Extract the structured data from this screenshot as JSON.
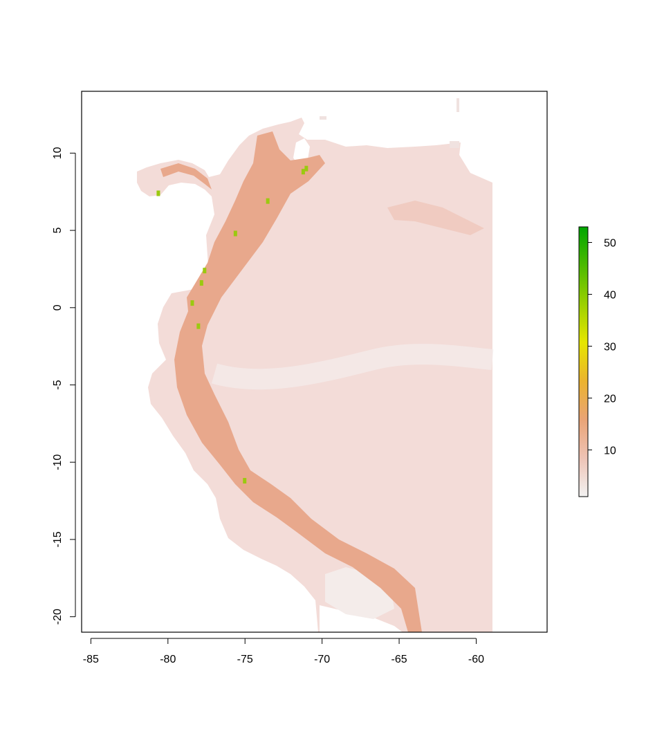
{
  "chart_data": {
    "type": "heatmap",
    "title": "",
    "xlabel": "",
    "ylabel": "",
    "x_ticks": [
      -85,
      -80,
      -75,
      -70,
      -65,
      -60
    ],
    "x_tick_labels": [
      "-85",
      "-80",
      "-75",
      "-70",
      "-65",
      "-60"
    ],
    "y_ticks": [
      10,
      5,
      0,
      -5,
      -10,
      -15,
      -20
    ],
    "y_tick_labels": [
      "10",
      "5",
      "0",
      "-5",
      "-10",
      "-15",
      "-20"
    ],
    "xlim": [
      -85.6,
      -55.4
    ],
    "ylim": [
      -21.0,
      14.0
    ],
    "raster_extent": {
      "xmin": -82.0,
      "xmax": -59.0,
      "ymin": -21.0,
      "ymax": 13.5
    },
    "colorbar": {
      "range": [
        1,
        53
      ],
      "ticks": [
        10,
        20,
        30,
        40,
        50
      ],
      "tick_labels": [
        "10",
        "20",
        "30",
        "40",
        "50"
      ],
      "colors": [
        "#f2f2f2",
        "#eec3b5",
        "#eaa476",
        "#ebb32e",
        "#e6e600",
        "#9bd000",
        "#4cba00",
        "#00a600"
      ],
      "position": "right"
    },
    "colors": {
      "background": "#f3dcd8",
      "lowland": "#f0e2e0",
      "andes": "#e8a88c",
      "peaks": "#9bc910",
      "ocean": "#ffffff"
    }
  }
}
